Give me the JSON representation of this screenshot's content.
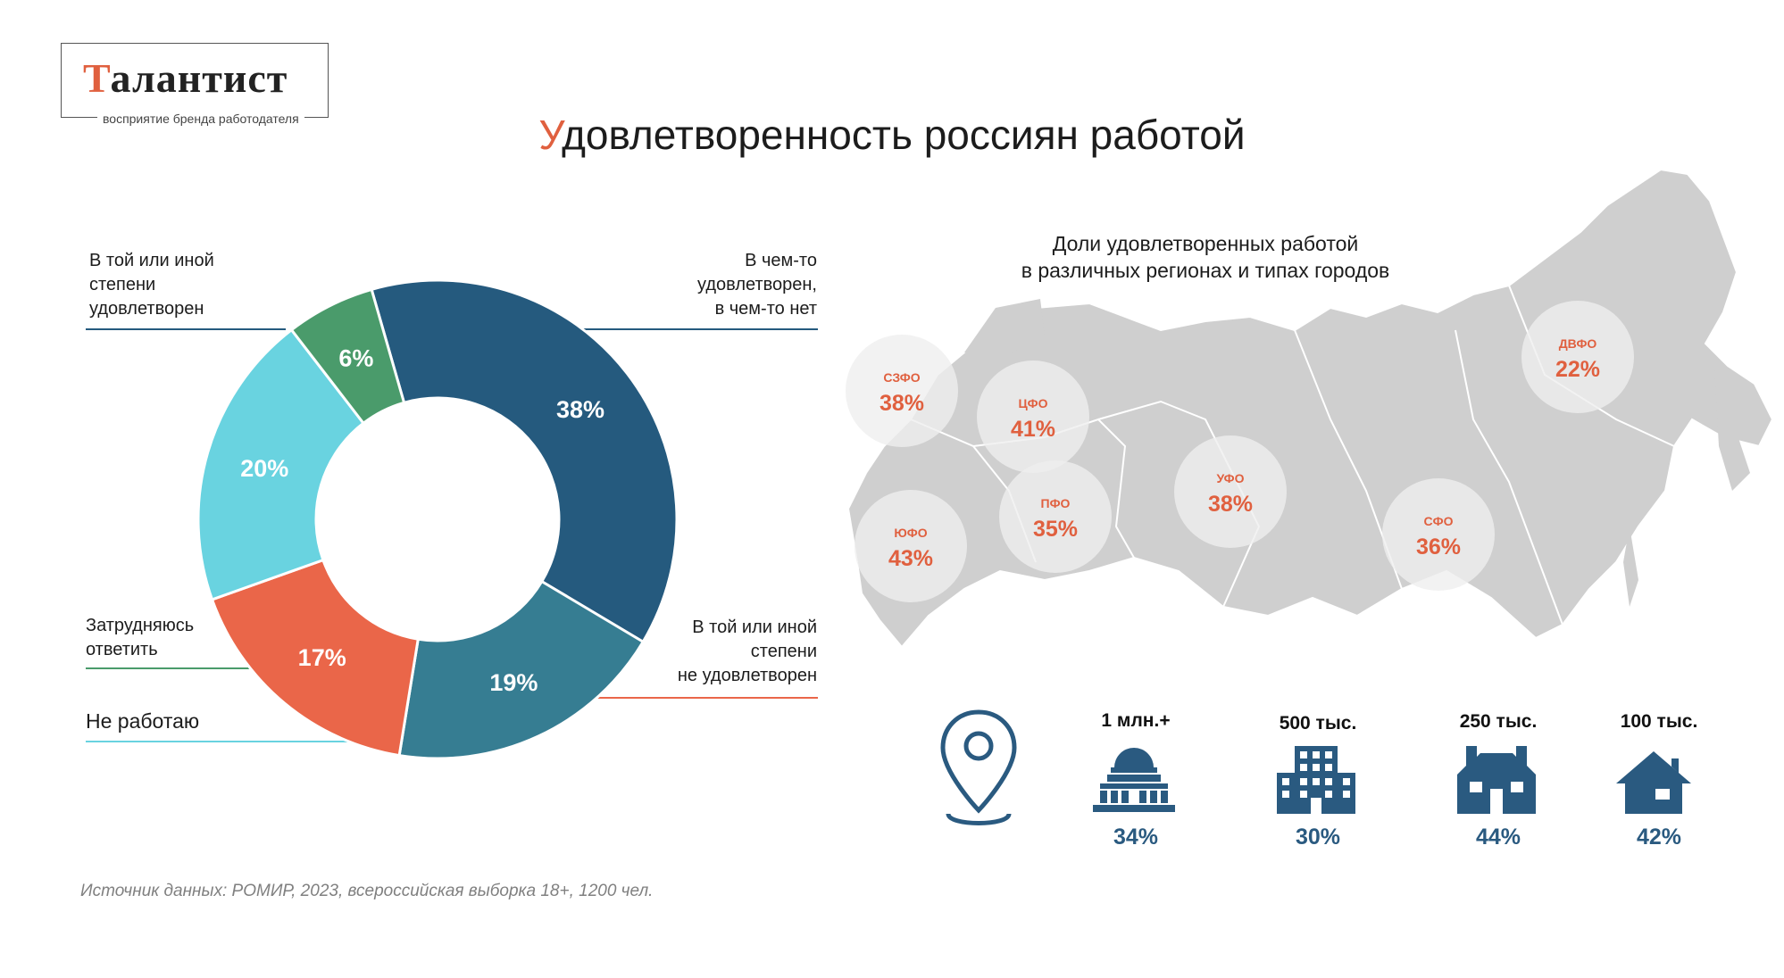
{
  "logo": {
    "first_letter": "Т",
    "rest": "алантист",
    "tagline": "восприятие бренда работодателя"
  },
  "title": {
    "first_letter": "У",
    "rest": "довлетворенность россиян работой"
  },
  "chart_data": [
    {
      "type": "pie",
      "variant": "donut",
      "series": [
        {
          "name": "В той или иной степени удовлетворен",
          "value": 38,
          "label": "38%",
          "color": "#255a7e"
        },
        {
          "name": "В чем-то удовлетворен, в чем-то нет",
          "value": 19,
          "label": "19%",
          "color": "#367d92"
        },
        {
          "name": "В той или иной степени не удовлетворен",
          "value": 17,
          "label": "17%",
          "color": "#ea6649"
        },
        {
          "name": "Не работаю",
          "value": 20,
          "label": "20%",
          "color": "#69d3e0"
        },
        {
          "name": "Затрудняюсь ответить",
          "value": 6,
          "label": "6%",
          "color": "#4a9b6b"
        }
      ]
    },
    {
      "type": "table",
      "title": "Доли удовлетворенных работой\nв различных регионах и типах городов",
      "regions": [
        {
          "name": "СЗФО",
          "label": "38%",
          "value": 38
        },
        {
          "name": "ЦФО",
          "label": "41%",
          "value": 41
        },
        {
          "name": "ЮФО",
          "label": "43%",
          "value": 43
        },
        {
          "name": "ПФО",
          "label": "35%",
          "value": 35
        },
        {
          "name": "УФО",
          "label": "38%",
          "value": 38
        },
        {
          "name": "СФО",
          "label": "36%",
          "value": 36
        },
        {
          "name": "ДВФО",
          "label": "22%",
          "value": 22
        }
      ],
      "cities": [
        {
          "name": "1 млн.+",
          "label": "34%",
          "value": 34,
          "icon": "capitol-building-icon"
        },
        {
          "name": "500 тыс.",
          "label": "30%",
          "value": 30,
          "icon": "office-building-icon"
        },
        {
          "name": "250 тыс.",
          "label": "44%",
          "value": 44,
          "icon": "townhouse-icon"
        },
        {
          "name": "100 тыс.",
          "label": "42%",
          "value": 42,
          "icon": "house-icon"
        }
      ]
    }
  ],
  "donut_labels": {
    "satisfied": "В той или иной\nстепени\nудовлетворен",
    "partly": "В чем-то\nудовлетворен,\nв чем-то нет",
    "unsatisfied": "В той или иной\nстепени\nне удовлетворен",
    "undecided": "Затрудняюсь\nответить",
    "not_working": "Не работаю"
  },
  "colors": {
    "accent": "#e0603f",
    "region_value": "#e0603f",
    "map_fill": "#cfcfcf",
    "city_value": "#2a5a80"
  },
  "location_icon": "map-pin-icon",
  "source": "Источник данных: РОМИР, 2023, всероссийская выборка 18+, 1200 чел."
}
